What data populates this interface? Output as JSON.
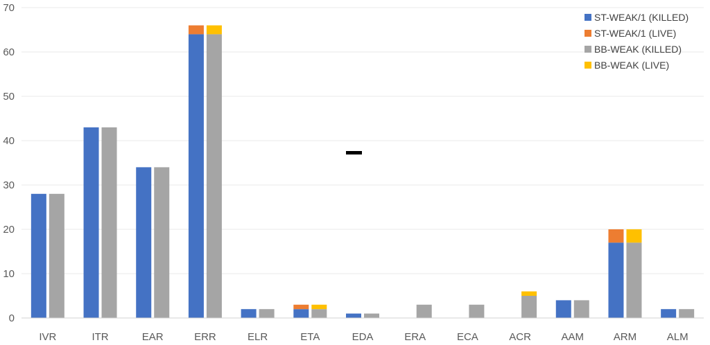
{
  "chart_data": {
    "type": "bar",
    "stacked_groups": true,
    "categories": [
      "IVR",
      "ITR",
      "EAR",
      "ERR",
      "ELR",
      "ETA",
      "EDA",
      "ERA",
      "ECA",
      "ACR",
      "AAM",
      "ARM",
      "ALM"
    ],
    "series": [
      {
        "name": "ST-WEAK/1 (KILLED)",
        "group": "ST-WEAK/1",
        "color": "#4472c4",
        "values": [
          28,
          43,
          34,
          64,
          2,
          2,
          1,
          0,
          0,
          0,
          4,
          17,
          2
        ]
      },
      {
        "name": "ST-WEAK/1 (LIVE)",
        "group": "ST-WEAK/1",
        "color": "#ed7d31",
        "values": [
          0,
          0,
          0,
          2,
          0,
          1,
          0,
          0,
          0,
          0,
          0,
          3,
          0
        ]
      },
      {
        "name": "BB-WEAK (KILLED)",
        "group": "BB-WEAK",
        "color": "#a5a5a5",
        "values": [
          28,
          43,
          34,
          64,
          2,
          2,
          1,
          3,
          3,
          5,
          4,
          17,
          2
        ]
      },
      {
        "name": "BB-WEAK (LIVE)",
        "group": "BB-WEAK",
        "color": "#ffc000",
        "values": [
          0,
          0,
          0,
          2,
          0,
          1,
          0,
          0,
          0,
          1,
          0,
          3,
          0
        ]
      }
    ],
    "y_ticks": [
      "0",
      "10",
      "20",
      "30",
      "40",
      "50",
      "60",
      "70"
    ],
    "ylim": [
      0,
      70
    ],
    "grid": true,
    "legend_position": "top-right"
  }
}
